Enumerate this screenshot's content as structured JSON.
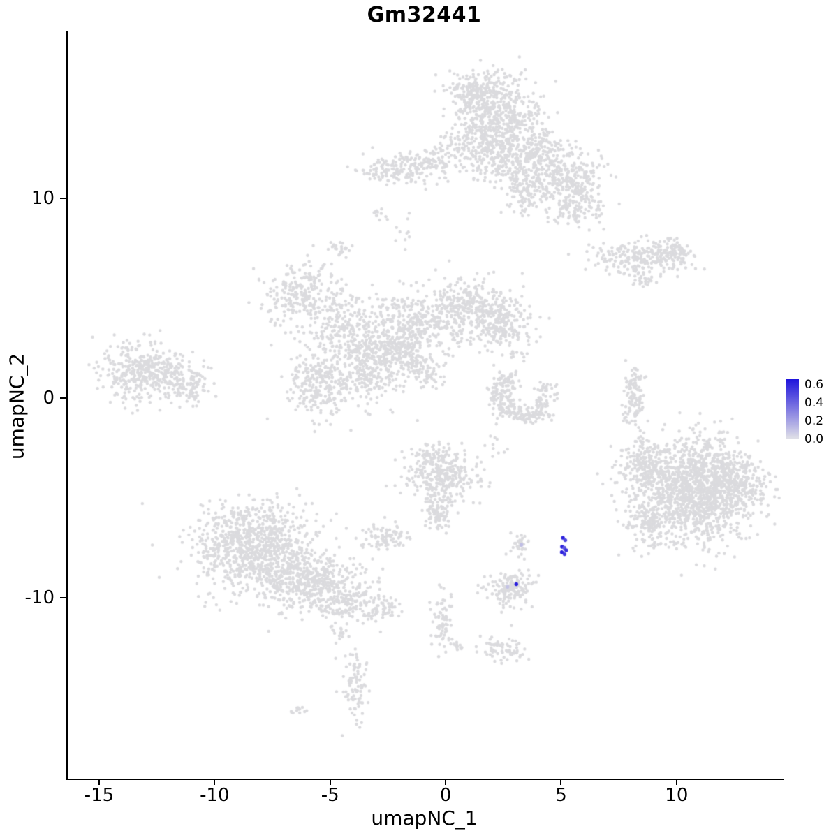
{
  "title": "Gm32441",
  "axes": {
    "x": {
      "label": "umapNC_1",
      "ticks": [
        -15,
        -10,
        -5,
        0,
        5,
        10
      ]
    },
    "y": {
      "label": "umapNC_2",
      "ticks": [
        10,
        0,
        -10
      ]
    }
  },
  "legend": {
    "tick_labels": [
      "0.6",
      "0.4",
      "0.2",
      "0.0"
    ],
    "tick_values": [
      0.6,
      0.4,
      0.2,
      0.0
    ],
    "max_value": 0.66,
    "low_color": "#E2E2E7",
    "high_color": "#1F14DC"
  },
  "style": {
    "point_color": "#DBDBDE",
    "point_radius": 2.2,
    "highlight_radius": 2.7,
    "axis_color": "#000000",
    "background": "#FFFFFF"
  },
  "chart_data": {
    "type": "scatter",
    "title": "Gm32441",
    "xlabel": "umapNC_1",
    "ylabel": "umapNC_2",
    "xlim": [
      -16.42,
      14.57
    ],
    "ylim": [
      -19.06,
      18.36
    ],
    "grid": false,
    "legend_position": "right",
    "seed": 42,
    "background_clusters": [
      {
        "cx": 2.0,
        "cy": 14.2,
        "sx": 1.0,
        "sy": 1.0,
        "n": 550
      },
      {
        "cx": 1.2,
        "cy": 15.3,
        "sx": 0.6,
        "sy": 0.5,
        "n": 150
      },
      {
        "cx": 2.3,
        "cy": 12.2,
        "sx": 0.8,
        "sy": 0.7,
        "n": 250
      },
      {
        "cx": 4.0,
        "cy": 12.4,
        "sx": 0.6,
        "sy": 0.6,
        "n": 150
      },
      {
        "cx": 5.1,
        "cy": 10.9,
        "sx": 0.8,
        "sy": 0.8,
        "n": 300
      },
      {
        "cx": 5.7,
        "cy": 9.6,
        "sx": 0.5,
        "sy": 0.5,
        "n": 100
      },
      {
        "cx": 3.3,
        "cy": 10.5,
        "sx": 0.5,
        "sy": 0.6,
        "n": 120
      },
      {
        "cx": -2.0,
        "cy": 11.5,
        "sx": 0.9,
        "sy": 0.35,
        "n": 170
      },
      {
        "cx": -0.6,
        "cy": 11.9,
        "sx": 0.4,
        "sy": 0.3,
        "n": 60
      },
      {
        "cx": 0.5,
        "cy": 12.5,
        "sx": 0.5,
        "sy": 0.4,
        "n": 40
      },
      {
        "cx": 8.3,
        "cy": 7.0,
        "sx": 1.0,
        "sy": 0.4,
        "n": 220
      },
      {
        "cx": 9.7,
        "cy": 7.3,
        "sx": 0.45,
        "sy": 0.35,
        "n": 90
      },
      {
        "cx": 8.5,
        "cy": 5.9,
        "sx": 0.3,
        "sy": 0.15,
        "n": 25
      },
      {
        "cx": -6.3,
        "cy": 5.2,
        "sx": 0.9,
        "sy": 0.8,
        "n": 260
      },
      {
        "cx": -4.4,
        "cy": 3.3,
        "sx": 0.7,
        "sy": 0.8,
        "n": 200
      },
      {
        "cx": -1.7,
        "cy": 3.6,
        "sx": 1.0,
        "sy": 0.9,
        "n": 400
      },
      {
        "cx": 0.9,
        "cy": 4.4,
        "sx": 0.8,
        "sy": 0.8,
        "n": 320
      },
      {
        "cx": 2.4,
        "cy": 3.9,
        "sx": 0.6,
        "sy": 0.7,
        "n": 200
      },
      {
        "cx": -3.2,
        "cy": 1.5,
        "sx": 0.8,
        "sy": 0.9,
        "n": 300
      },
      {
        "cx": -5.6,
        "cy": 0.7,
        "sx": 0.7,
        "sy": 0.8,
        "n": 260
      },
      {
        "cx": -2.2,
        "cy": 2.4,
        "sx": 0.35,
        "sy": 0.3,
        "n": 60
      },
      {
        "cx": -1.4,
        "cy": 1.7,
        "sx": 0.3,
        "sy": 0.3,
        "n": 50
      },
      {
        "cx": -0.7,
        "cy": 1.1,
        "sx": 0.3,
        "sy": 0.3,
        "n": 40
      },
      {
        "cx": -4.6,
        "cy": 7.5,
        "sx": 0.3,
        "sy": 0.2,
        "n": 25
      },
      {
        "cx": -3.0,
        "cy": 9.1,
        "sx": 0.25,
        "sy": 0.2,
        "n": 12
      },
      {
        "cx": -1.8,
        "cy": 8.3,
        "sx": 0.3,
        "sy": 0.4,
        "n": 10
      },
      {
        "cx": -13.0,
        "cy": 1.3,
        "sx": 1.0,
        "sy": 0.75,
        "n": 420
      },
      {
        "cx": -11.2,
        "cy": 0.6,
        "sx": 0.5,
        "sy": 0.5,
        "n": 90
      },
      {
        "cx": 2.6,
        "cy": 0.9,
        "sx": 0.35,
        "sy": 0.3,
        "n": 55
      },
      {
        "cx": 2.3,
        "cy": 0.15,
        "sx": 0.3,
        "sy": 0.3,
        "n": 50
      },
      {
        "cx": 2.7,
        "cy": -0.55,
        "sx": 0.35,
        "sy": 0.25,
        "n": 55
      },
      {
        "cx": 3.4,
        "cy": -0.9,
        "sx": 0.5,
        "sy": 0.22,
        "n": 65
      },
      {
        "cx": 4.15,
        "cy": -0.5,
        "sx": 0.25,
        "sy": 0.3,
        "n": 40
      },
      {
        "cx": 4.3,
        "cy": 0.35,
        "sx": 0.2,
        "sy": 0.3,
        "n": 30
      },
      {
        "cx": 3.0,
        "cy": 2.2,
        "sx": 0.3,
        "sy": 0.25,
        "n": 12
      },
      {
        "cx": 8.1,
        "cy": -0.1,
        "sx": 0.22,
        "sy": 0.85,
        "n": 110
      },
      {
        "cx": 10.8,
        "cy": -4.6,
        "sx": 1.25,
        "sy": 1.25,
        "n": 1500
      },
      {
        "cx": 8.4,
        "cy": -3.3,
        "sx": 0.5,
        "sy": 0.7,
        "n": 170
      },
      {
        "cx": 8.7,
        "cy": -6.1,
        "sx": 0.45,
        "sy": 0.6,
        "n": 130
      },
      {
        "cx": 12.6,
        "cy": -4.0,
        "sx": 0.5,
        "sy": 0.7,
        "n": 150
      },
      {
        "cx": -8.4,
        "cy": -7.5,
        "sx": 1.25,
        "sy": 1.05,
        "n": 950
      },
      {
        "cx": -6.0,
        "cy": -9.2,
        "sx": 1.0,
        "sy": 0.75,
        "n": 420
      },
      {
        "cx": -4.3,
        "cy": -10.2,
        "sx": 0.7,
        "sy": 0.45,
        "n": 150
      },
      {
        "cx": -2.9,
        "cy": -10.6,
        "sx": 0.45,
        "sy": 0.3,
        "n": 60
      },
      {
        "cx": -4.6,
        "cy": -11.8,
        "sx": 0.2,
        "sy": 0.2,
        "n": 18
      },
      {
        "cx": -0.3,
        "cy": -3.9,
        "sx": 0.75,
        "sy": 0.65,
        "n": 300
      },
      {
        "cx": -0.6,
        "cy": -2.8,
        "sx": 0.35,
        "sy": 0.3,
        "n": 60
      },
      {
        "cx": -0.4,
        "cy": -5.8,
        "sx": 0.3,
        "sy": 0.5,
        "n": 85
      },
      {
        "cx": -2.7,
        "cy": -6.9,
        "sx": 0.5,
        "sy": 0.4,
        "n": 90
      },
      {
        "cx": 3.2,
        "cy": -7.4,
        "sx": 0.22,
        "sy": 0.28,
        "n": 30
      },
      {
        "cx": 2.7,
        "cy": -9.5,
        "sx": 0.55,
        "sy": 0.4,
        "n": 150
      },
      {
        "cx": -0.2,
        "cy": -10.7,
        "sx": 0.2,
        "sy": 0.5,
        "n": 40
      },
      {
        "cx": -0.3,
        "cy": -11.9,
        "sx": 0.25,
        "sy": 0.4,
        "n": 30
      },
      {
        "cx": 0.4,
        "cy": -12.4,
        "sx": 0.2,
        "sy": 0.2,
        "n": 14
      },
      {
        "cx": 2.4,
        "cy": -12.6,
        "sx": 0.5,
        "sy": 0.35,
        "n": 70
      },
      {
        "cx": -3.9,
        "cy": -14.2,
        "sx": 0.3,
        "sy": 0.95,
        "n": 90
      },
      {
        "cx": -6.3,
        "cy": -15.6,
        "sx": 0.25,
        "sy": 0.18,
        "n": 12
      },
      {
        "cx": 2.2,
        "cy": -2.3,
        "sx": 0.3,
        "sy": 0.3,
        "n": 10
      }
    ],
    "highlighted_points": [
      {
        "x": 5.02,
        "y": -7.0,
        "value": 0.62
      },
      {
        "x": 5.12,
        "y": -7.12,
        "value": 0.5
      },
      {
        "x": 4.98,
        "y": -7.45,
        "value": 0.62
      },
      {
        "x": 5.08,
        "y": -7.5,
        "value": 0.45
      },
      {
        "x": 5.16,
        "y": -7.62,
        "value": 0.58
      },
      {
        "x": 4.97,
        "y": -7.72,
        "value": 0.62
      },
      {
        "x": 5.09,
        "y": -7.82,
        "value": 0.55
      },
      {
        "x": 3.0,
        "y": -9.32,
        "value": 0.62
      },
      {
        "x": 3.22,
        "y": -7.35,
        "value": 0.12
      },
      {
        "x": 2.62,
        "y": -9.45,
        "value": 0.1
      }
    ]
  }
}
